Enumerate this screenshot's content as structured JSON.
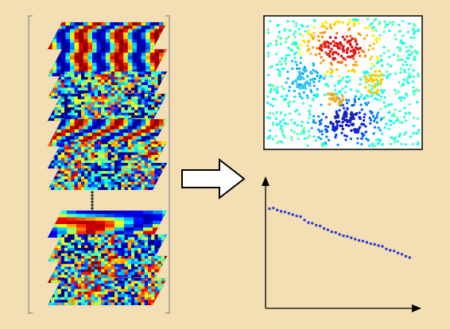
{
  "palette": {
    "background": "#f3dfb3",
    "bracket": "#8a8a8a",
    "field_cool": "#2a4bd7",
    "field_warm": "#e8281b",
    "field_mid": "#6fdc6a",
    "scatter_point": "#2d3bd8",
    "axis": "#000000"
  },
  "panels": {
    "map_stack": {
      "upper_layer_count": 7,
      "lower_layer_count": 4,
      "ellipsis_dots": 7,
      "styles": [
        "stripes",
        "stripes",
        "noise",
        "noise",
        "stripes",
        "noise",
        "noise",
        "blobs",
        "noise",
        "noise",
        "noise"
      ]
    },
    "arrow": {
      "icon": "right-arrow-icon"
    },
    "spatial_map": {
      "clusters": [
        {
          "name": "red-hot-spot",
          "color": "#d81b1b"
        },
        {
          "name": "yellow-ring",
          "color": "#f5d000"
        },
        {
          "name": "cyan-spot",
          "color": "#35c8ef"
        },
        {
          "name": "orange-pair",
          "color": "#f2a81e"
        },
        {
          "name": "blue-cold-spot",
          "color": "#1424b8"
        }
      ]
    }
  },
  "chart_data": {
    "type": "scatter",
    "title": "",
    "xlabel": "",
    "ylabel": "",
    "grid": false,
    "series": [
      {
        "x": [
          1,
          2,
          3,
          4,
          5,
          6,
          7,
          8,
          9,
          10,
          11,
          12,
          13,
          14,
          15,
          16,
          17,
          18,
          19,
          20,
          21,
          22,
          23,
          24,
          25,
          26,
          27,
          28,
          29,
          30,
          31,
          32,
          33,
          34,
          35,
          36,
          37
        ],
        "y": [
          7.55,
          7.6,
          7.45,
          7.35,
          7.3,
          7.2,
          7.1,
          7.0,
          6.95,
          6.7,
          6.5,
          6.45,
          6.3,
          6.25,
          6.05,
          5.95,
          5.8,
          5.75,
          5.6,
          5.5,
          5.45,
          5.35,
          5.25,
          5.15,
          5.1,
          5.0,
          4.9,
          4.85,
          4.75,
          4.7,
          4.5,
          4.4,
          4.35,
          4.2,
          4.1,
          3.95,
          3.85
        ]
      }
    ]
  }
}
